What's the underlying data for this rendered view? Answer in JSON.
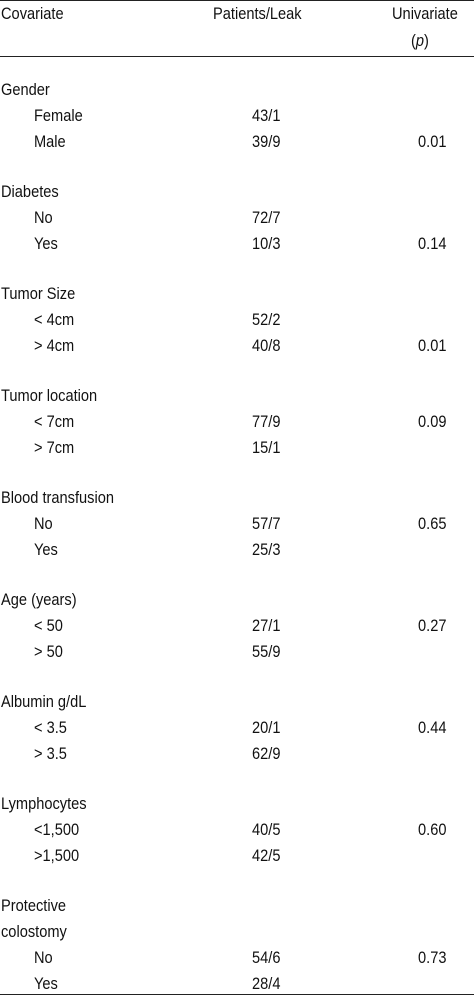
{
  "header": {
    "covariate": "Covariate",
    "patients_leak": "Patients/Leak",
    "univariate": "Univariate",
    "p_open": "(",
    "p_letter": "p",
    "p_close": ")"
  },
  "groups": [
    {
      "title": "Gender",
      "rows": [
        {
          "label": "Female",
          "pl": "43/1",
          "p": ""
        },
        {
          "label": "Male",
          "pl": "39/9",
          "p": "0.01"
        }
      ]
    },
    {
      "title": "Diabetes",
      "rows": [
        {
          "label": "No",
          "pl": "72/7",
          "p": ""
        },
        {
          "label": "Yes",
          "pl": "10/3",
          "p": "0.14"
        }
      ]
    },
    {
      "title": "Tumor Size",
      "rows": [
        {
          "label": "< 4cm",
          "pl": "52/2",
          "p": ""
        },
        {
          "label": "> 4cm",
          "pl": "40/8",
          "p": "0.01"
        }
      ]
    },
    {
      "title": "Tumor location",
      "rows": [
        {
          "label": "< 7cm",
          "pl": "77/9",
          "p": "0.09"
        },
        {
          "label": "> 7cm",
          "pl": "15/1",
          "p": ""
        }
      ]
    },
    {
      "title": "Blood transfusion",
      "rows": [
        {
          "label": "No",
          "pl": "57/7",
          "p": "0.65"
        },
        {
          "label": "Yes",
          "pl": "25/3",
          "p": ""
        }
      ]
    },
    {
      "title": "Age (years)",
      "rows": [
        {
          "label": "< 50",
          "pl": "27/1",
          "p": "0.27"
        },
        {
          "label": "> 50",
          "pl": "55/9",
          "p": ""
        }
      ]
    },
    {
      "title": "Albumin g/dL",
      "rows": [
        {
          "label": "< 3.5",
          "pl": "20/1",
          "p": "0.44"
        },
        {
          "label": "> 3.5",
          "pl": "62/9",
          "p": ""
        }
      ]
    },
    {
      "title": "Lymphocytes",
      "rows": [
        {
          "label": "<1,500",
          "pl": "40/5",
          "p": "0.60"
        },
        {
          "label": ">1,500",
          "pl": "42/5",
          "p": ""
        }
      ]
    },
    {
      "title_lines": [
        "Protective",
        "colostomy"
      ],
      "rows": [
        {
          "label": "No",
          "pl": "54/6",
          "p": "0.73"
        },
        {
          "label": "Yes",
          "pl": "28/4",
          "p": ""
        }
      ]
    }
  ]
}
